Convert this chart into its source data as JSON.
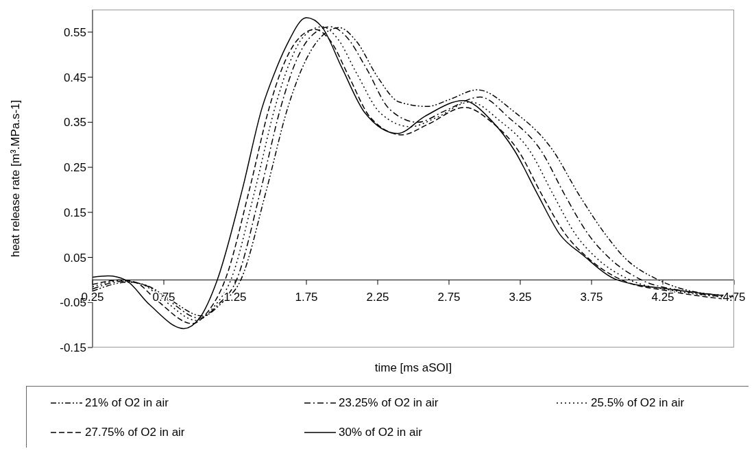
{
  "chart_data": {
    "type": "line",
    "xlabel": "time [ms aSOI]",
    "ylabel": "heat release rate [m³.MPa.s-1]",
    "xlim": [
      0.25,
      4.75
    ],
    "xticks": [
      0.25,
      0.75,
      1.25,
      1.75,
      2.25,
      2.75,
      3.25,
      3.75,
      4.25,
      4.75
    ],
    "ylim": [
      -0.15,
      0.6
    ],
    "yticks": [
      -0.15,
      -0.05,
      0.05,
      0.15,
      0.25,
      0.35,
      0.45,
      0.55
    ],
    "legend": "bottom",
    "marker": "none",
    "series": [
      {
        "name": "21% of O2 in air",
        "color": "#000000",
        "line_style": "dashdotdot",
        "x": [
          0.25,
          0.5,
          0.65,
          0.8,
          1.02,
          1.16,
          1.29,
          1.47,
          1.62,
          1.72,
          1.84,
          1.98,
          2.1,
          2.25,
          2.4,
          2.6,
          2.75,
          2.95,
          3.2,
          3.48,
          3.66,
          3.85,
          3.98,
          4.22,
          4.5,
          4.75
        ],
        "values": [
          -0.025,
          -0.005,
          -0.015,
          -0.045,
          -0.08,
          -0.05,
          0,
          0.2,
          0.383,
          0.47,
          0.535,
          0.56,
          0.53,
          0.45,
          0.395,
          0.385,
          0.4,
          0.422,
          0.375,
          0.287,
          0.19,
          0.1,
          0.05,
          0,
          -0.028,
          -0.035
        ]
      },
      {
        "name": "23.25% of O2 in air",
        "color": "#000000",
        "line_style": "dashdot",
        "x": [
          0.25,
          0.47,
          0.62,
          0.78,
          1.0,
          1.13,
          1.26,
          1.43,
          1.57,
          1.67,
          1.78,
          1.92,
          2.03,
          2.17,
          2.33,
          2.53,
          2.72,
          2.97,
          3.17,
          3.4,
          3.56,
          3.73,
          3.87,
          4.1,
          4.4,
          4.75
        ],
        "values": [
          -0.02,
          -0.003,
          -0.012,
          -0.045,
          -0.085,
          -0.055,
          0,
          0.2,
          0.383,
          0.48,
          0.54,
          0.562,
          0.54,
          0.47,
          0.38,
          0.35,
          0.375,
          0.406,
          0.36,
          0.285,
          0.19,
          0.1,
          0.05,
          0,
          -0.025,
          -0.04
        ]
      },
      {
        "name": "25.5% of O2 in air",
        "color": "#000000",
        "line_style": "dotted",
        "x": [
          0.25,
          0.45,
          0.6,
          0.75,
          0.98,
          1.1,
          1.22,
          1.39,
          1.53,
          1.63,
          1.73,
          1.86,
          1.97,
          2.1,
          2.27,
          2.48,
          2.66,
          2.9,
          3.1,
          3.32,
          3.48,
          3.64,
          3.78,
          4.02,
          4.35,
          4.75
        ],
        "values": [
          -0.015,
          -0.002,
          -0.01,
          -0.045,
          -0.09,
          -0.06,
          0,
          0.2,
          0.383,
          0.48,
          0.54,
          0.562,
          0.535,
          0.46,
          0.37,
          0.34,
          0.36,
          0.395,
          0.355,
          0.285,
          0.19,
          0.1,
          0.05,
          0,
          -0.025,
          -0.04
        ]
      },
      {
        "name": "27.75% of O2 in air",
        "color": "#000000",
        "line_style": "dashed",
        "x": [
          0.25,
          0.45,
          0.55,
          0.7,
          0.95,
          1.06,
          1.18,
          1.35,
          1.49,
          1.58,
          1.68,
          1.81,
          1.92,
          2.05,
          2.2,
          2.42,
          2.6,
          2.86,
          3.05,
          3.24,
          3.4,
          3.57,
          3.72,
          3.96,
          4.3,
          4.75
        ],
        "values": [
          -0.01,
          0,
          -0.005,
          -0.045,
          -0.097,
          -0.07,
          0,
          0.2,
          0.383,
          0.47,
          0.53,
          0.556,
          0.53,
          0.45,
          0.36,
          0.322,
          0.345,
          0.383,
          0.35,
          0.285,
          0.19,
          0.1,
          0.05,
          0,
          -0.025,
          -0.045
        ]
      },
      {
        "name": "30% of O2 in air",
        "color": "#000000",
        "line_style": "solid",
        "x": [
          0.25,
          0.36,
          0.48,
          0.65,
          0.89,
          1.0,
          1.125,
          1.3,
          1.44,
          1.52,
          1.61,
          1.75,
          1.86,
          2.0,
          2.16,
          2.39,
          2.58,
          2.85,
          3.05,
          3.21,
          3.37,
          3.53,
          3.69,
          3.93,
          4.31,
          4.75
        ],
        "values": [
          0.006,
          0.009,
          0,
          -0.055,
          -0.108,
          -0.085,
          0,
          0.2,
          0.383,
          0.454,
          0.52,
          0.582,
          0.561,
          0.47,
          0.371,
          0.325,
          0.363,
          0.398,
          0.353,
          0.287,
          0.191,
          0.1,
          0.055,
          0,
          -0.021,
          -0.037
        ]
      }
    ]
  }
}
